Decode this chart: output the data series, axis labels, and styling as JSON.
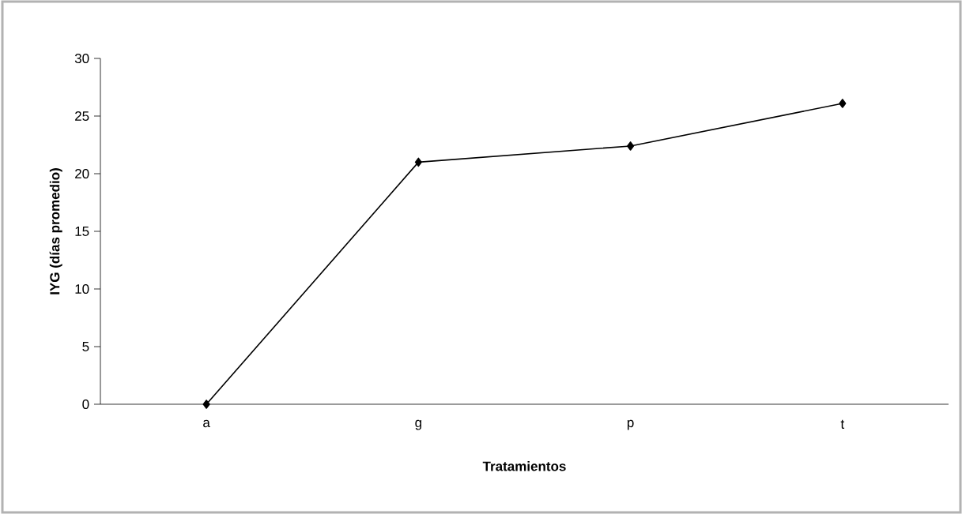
{
  "chart_data": {
    "type": "line",
    "xlabel": "Tratamientos",
    "ylabel": "IYG (días promedio)",
    "categories": [
      "a",
      "g",
      "p",
      "t"
    ],
    "series": [
      {
        "color": "#000000",
        "values": [
          0,
          21,
          22.4,
          26.1
        ]
      }
    ],
    "ylim": [
      0,
      30
    ],
    "yticks": [
      0,
      5,
      10,
      15,
      20,
      25,
      30
    ],
    "grid": false,
    "legend": false,
    "marker": "diamond",
    "line_style": "solid"
  }
}
